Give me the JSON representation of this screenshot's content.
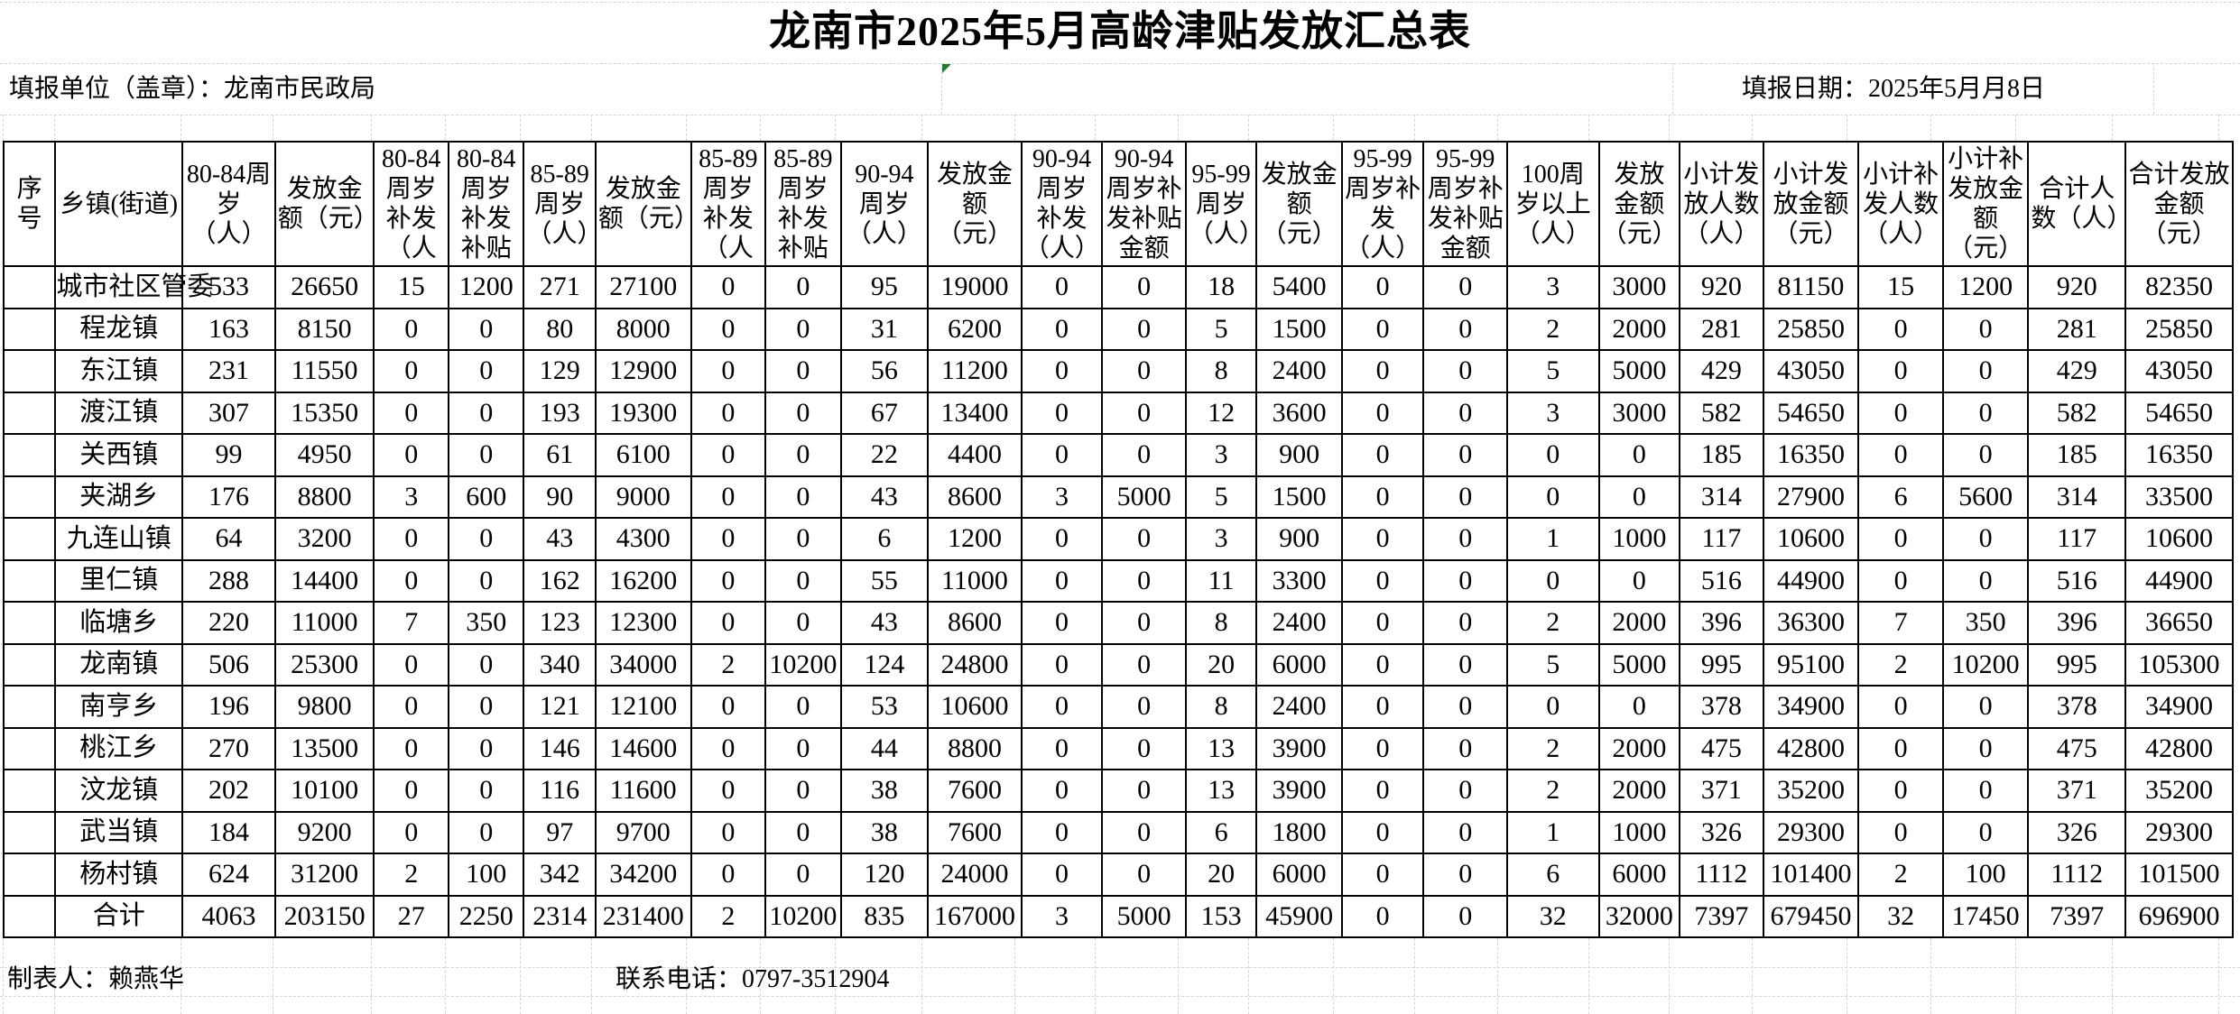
{
  "title": "龙南市2025年5月高龄津贴发放汇总表",
  "meta": {
    "unit": "填报单位（盖章）：龙南市民政局",
    "date": "填报日期：2025年5月月8日"
  },
  "table": {
    "headers": [
      "序号",
      "乡镇(街道)",
      "80-84周岁（人）",
      "发放金额（元）",
      "80-84周岁补发（人",
      "80-84周岁补发补贴",
      "85-89周岁（人）",
      "发放金额（元）",
      "85-89周岁补发（人",
      "85-89周岁补发补贴",
      "90-94周岁（人）",
      "发放金额（元）",
      "90-94周岁补发（人）",
      "90-94周岁补发补贴金额",
      "95-99周岁（人）",
      "发放金额（元）",
      "95-99周岁补发（人）",
      "95-99周岁补发补贴金额",
      "100周岁以上（人）",
      "发放金额（元）",
      "小计发放人数（人）",
      "小计发放金额（元）",
      "小计补发人数（人）",
      "小计补发放金额（元）",
      "合计人数（人）",
      "合计发放金额（元）"
    ],
    "rows": [
      {
        "name": "城市社区管委",
        "values": [
          533,
          26650,
          15,
          1200,
          271,
          27100,
          0,
          0,
          95,
          19000,
          0,
          0,
          18,
          5400,
          0,
          0,
          3,
          3000,
          920,
          81150,
          15,
          1200,
          920,
          82350
        ]
      },
      {
        "name": "程龙镇",
        "values": [
          163,
          8150,
          0,
          0,
          80,
          8000,
          0,
          0,
          31,
          6200,
          0,
          0,
          5,
          1500,
          0,
          0,
          2,
          2000,
          281,
          25850,
          0,
          0,
          281,
          25850
        ]
      },
      {
        "name": "东江镇",
        "values": [
          231,
          11550,
          0,
          0,
          129,
          12900,
          0,
          0,
          56,
          11200,
          0,
          0,
          8,
          2400,
          0,
          0,
          5,
          5000,
          429,
          43050,
          0,
          0,
          429,
          43050
        ]
      },
      {
        "name": "渡江镇",
        "values": [
          307,
          15350,
          0,
          0,
          193,
          19300,
          0,
          0,
          67,
          13400,
          0,
          0,
          12,
          3600,
          0,
          0,
          3,
          3000,
          582,
          54650,
          0,
          0,
          582,
          54650
        ]
      },
      {
        "name": "关西镇",
        "values": [
          99,
          4950,
          0,
          0,
          61,
          6100,
          0,
          0,
          22,
          4400,
          0,
          0,
          3,
          900,
          0,
          0,
          0,
          0,
          185,
          16350,
          0,
          0,
          185,
          16350
        ]
      },
      {
        "name": "夹湖乡",
        "values": [
          176,
          8800,
          3,
          600,
          90,
          9000,
          0,
          0,
          43,
          8600,
          3,
          5000,
          5,
          1500,
          0,
          0,
          0,
          0,
          314,
          27900,
          6,
          5600,
          314,
          33500
        ]
      },
      {
        "name": "九连山镇",
        "values": [
          64,
          3200,
          0,
          0,
          43,
          4300,
          0,
          0,
          6,
          1200,
          0,
          0,
          3,
          900,
          0,
          0,
          1,
          1000,
          117,
          10600,
          0,
          0,
          117,
          10600
        ]
      },
      {
        "name": "里仁镇",
        "values": [
          288,
          14400,
          0,
          0,
          162,
          16200,
          0,
          0,
          55,
          11000,
          0,
          0,
          11,
          3300,
          0,
          0,
          0,
          0,
          516,
          44900,
          0,
          0,
          516,
          44900
        ]
      },
      {
        "name": "临塘乡",
        "values": [
          220,
          11000,
          7,
          350,
          123,
          12300,
          0,
          0,
          43,
          8600,
          0,
          0,
          8,
          2400,
          0,
          0,
          2,
          2000,
          396,
          36300,
          7,
          350,
          396,
          36650
        ]
      },
      {
        "name": "龙南镇",
        "values": [
          506,
          25300,
          0,
          0,
          340,
          34000,
          2,
          10200,
          124,
          24800,
          0,
          0,
          20,
          6000,
          0,
          0,
          5,
          5000,
          995,
          95100,
          2,
          10200,
          995,
          105300
        ]
      },
      {
        "name": "南亨乡",
        "values": [
          196,
          9800,
          0,
          0,
          121,
          12100,
          0,
          0,
          53,
          10600,
          0,
          0,
          8,
          2400,
          0,
          0,
          0,
          0,
          378,
          34900,
          0,
          0,
          378,
          34900
        ]
      },
      {
        "name": "桃江乡",
        "values": [
          270,
          13500,
          0,
          0,
          146,
          14600,
          0,
          0,
          44,
          8800,
          0,
          0,
          13,
          3900,
          0,
          0,
          2,
          2000,
          475,
          42800,
          0,
          0,
          475,
          42800
        ]
      },
      {
        "name": "汶龙镇",
        "values": [
          202,
          10100,
          0,
          0,
          116,
          11600,
          0,
          0,
          38,
          7600,
          0,
          0,
          13,
          3900,
          0,
          0,
          2,
          2000,
          371,
          35200,
          0,
          0,
          371,
          35200
        ]
      },
      {
        "name": "武当镇",
        "values": [
          184,
          9200,
          0,
          0,
          97,
          9700,
          0,
          0,
          38,
          7600,
          0,
          0,
          6,
          1800,
          0,
          0,
          1,
          1000,
          326,
          29300,
          0,
          0,
          326,
          29300
        ]
      },
      {
        "name": "杨村镇",
        "values": [
          624,
          31200,
          2,
          100,
          342,
          34200,
          0,
          0,
          120,
          24000,
          0,
          0,
          20,
          6000,
          0,
          0,
          6,
          6000,
          1112,
          101400,
          2,
          100,
          1112,
          101500
        ]
      },
      {
        "name": "合计",
        "values": [
          4063,
          203150,
          27,
          2250,
          2314,
          231400,
          2,
          10200,
          835,
          167000,
          3,
          5000,
          153,
          45900,
          0,
          0,
          32,
          32000,
          7397,
          679450,
          32,
          17450,
          7397,
          696900
        ]
      }
    ]
  },
  "footer": {
    "preparer": "制表人：赖燕华",
    "phone": "联系电话：0797-3512904"
  },
  "colors": {
    "table_border": "#000000",
    "sheet_grid": "#d4d4d4",
    "marker_green": "#1e7e34"
  }
}
